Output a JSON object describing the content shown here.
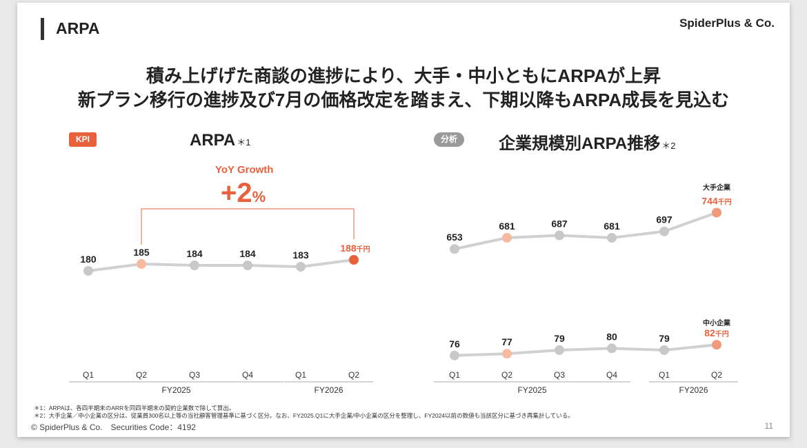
{
  "header": {
    "page_title": "ARPA",
    "brand": "SpiderPlus & Co."
  },
  "headline": {
    "line1": "積み上げげた商談の進捗により、大手・中小ともにARPAが上昇",
    "line2": "新プラン移行の進捗及び7月の価格改定を踏まえ、下期以降もARPA成長を見込む"
  },
  "left_panel": {
    "badge": "KPI",
    "title": "ARPA",
    "title_note": "＊1",
    "yoy_label": "YoY Growth",
    "yoy_value": "+2",
    "yoy_unit": "%"
  },
  "right_panel": {
    "badge": "分析",
    "title": "企業規模別ARPA推移",
    "title_note": "＊2"
  },
  "chart_data": [
    {
      "type": "line",
      "title": "ARPA",
      "categories": [
        "Q1",
        "Q2",
        "Q3",
        "Q4",
        "Q1",
        "Q2"
      ],
      "groups": [
        {
          "label": "FY2025",
          "span": 4
        },
        {
          "label": "FY2026",
          "span": 2
        }
      ],
      "series": [
        {
          "values": [
            180,
            185,
            184,
            184,
            183,
            188
          ],
          "last_label": "188",
          "last_unit": "千円"
        }
      ],
      "highlight": {
        "compare_index": 1,
        "current_index": 5
      },
      "ylim": [
        150,
        200
      ],
      "colors": {
        "line": "#d0d0d0",
        "marker": "#c8c8c8",
        "compare": "#f7b9a2",
        "current": "#e8603c"
      }
    },
    {
      "type": "line",
      "title": "企業規模別ARPA推移",
      "categories": [
        "Q1",
        "Q2",
        "Q3",
        "Q4",
        "Q1",
        "Q2"
      ],
      "groups": [
        {
          "label": "FY2025",
          "span": 4
        },
        {
          "label": "FY2026",
          "span": 2
        }
      ],
      "series": [
        {
          "name": "大手企業",
          "values": [
            653,
            681,
            687,
            681,
            697,
            744
          ],
          "last_label": "744",
          "last_unit": "千円"
        },
        {
          "name": "中小企業",
          "values": [
            76,
            77,
            79,
            80,
            79,
            82
          ],
          "last_label": "82",
          "last_unit": "千円"
        }
      ],
      "highlight": {
        "compare_index": 1,
        "current_index": 5
      },
      "colors": {
        "line": "#d0d0d0",
        "marker": "#c8c8c8",
        "compare": "#f7b9a2",
        "current": "#f19a7a",
        "label": "#e8603c"
      }
    }
  ],
  "footnotes": {
    "fn1": "＊1：ARPAは、各四半期末のARRを同四半期末の契約企業数で除して算出。",
    "fn2": "＊2：大手企業／中小企業の区分は、従業員300名以上等の当社顧客管理基準に基づく区分。なお、FY2025.Q1に大手企業/中小企業の区分を整理し、FY2024以前の数値も当該区分に基づき再集計している。"
  },
  "footer": {
    "copyright": "© SpiderPlus & Co.　Securities Code：4192",
    "page_number": "11"
  }
}
